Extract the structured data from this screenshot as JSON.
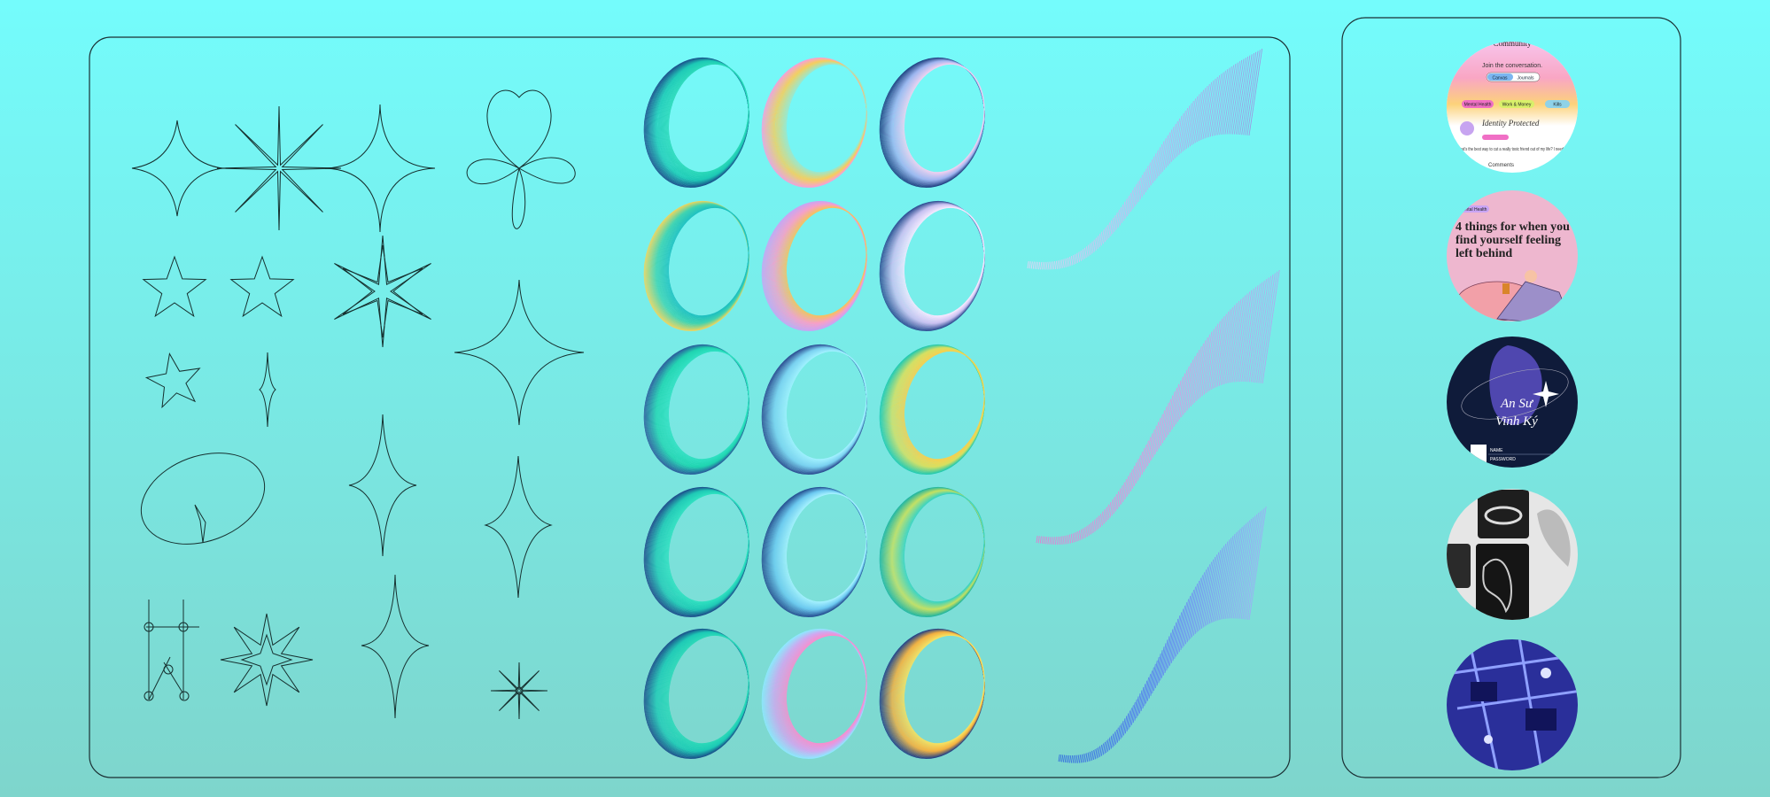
{
  "thumbnails": [
    {
      "heading": "Community",
      "prompt": "Join the conversation.",
      "tabs": [
        "Canvas",
        "Journals"
      ],
      "tags": [
        "Mental Health",
        "Work & Money",
        "Kills"
      ],
      "post_title": "Identity Protected",
      "post_body": "What's the best way to cut a really toxic friend out of my life? I need advice.",
      "comments": "Comments"
    },
    {
      "tag": "Mental Health",
      "headline": [
        "4 things for when you",
        "find yourself feeling",
        "left behind"
      ]
    },
    {
      "title": [
        "An Sư",
        "Vinh Ký"
      ],
      "fields": [
        "NAME",
        "PASSWORD"
      ]
    }
  ]
}
